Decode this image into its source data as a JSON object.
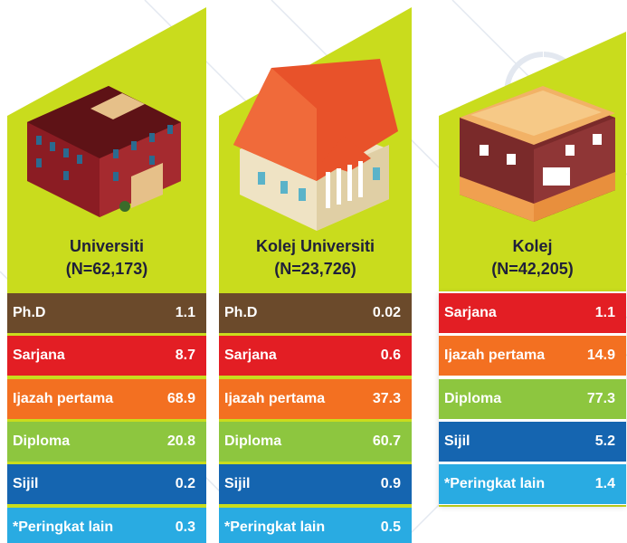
{
  "columns": [
    {
      "title": "Universiti",
      "n": "(N=62,173)",
      "rows": [
        {
          "label": "Ph.D",
          "value": 1.1,
          "color": "#6b4a2b"
        },
        {
          "label": "Sarjana",
          "value": 8.7,
          "color": "#e31e24"
        },
        {
          "label": "Ijazah pertama",
          "value": 68.9,
          "color": "#f37021"
        },
        {
          "label": "Diploma",
          "value": 20.8,
          "color": "#8dc63f"
        },
        {
          "label": "Sijil",
          "value": 0.2,
          "color": "#1565b0"
        },
        {
          "label": "*Peringkat lain",
          "value": 0.3,
          "color": "#29abe2"
        }
      ]
    },
    {
      "title": "Kolej Universiti",
      "n": "(N=23,726)",
      "rows": [
        {
          "label": "Ph.D",
          "value": 0.02,
          "color": "#6b4a2b"
        },
        {
          "label": "Sarjana",
          "value": 0.6,
          "color": "#e31e24"
        },
        {
          "label": "Ijazah pertama",
          "value": 37.3,
          "color": "#f37021"
        },
        {
          "label": "Diploma",
          "value": 60.7,
          "color": "#8dc63f"
        },
        {
          "label": "Sijil",
          "value": 0.9,
          "color": "#1565b0"
        },
        {
          "label": "*Peringkat lain",
          "value": 0.5,
          "color": "#29abe2"
        }
      ]
    },
    {
      "title": "Kolej",
      "n": "(N=42,205)",
      "rows": [
        {
          "label": "Sarjana",
          "value": 1.1,
          "color": "#e31e24"
        },
        {
          "label": "Ijazah pertama",
          "value": 14.9,
          "color": "#f37021"
        },
        {
          "label": "Diploma",
          "value": 77.3,
          "color": "#8dc63f"
        },
        {
          "label": "Sijil",
          "value": 5.2,
          "color": "#1565b0"
        },
        {
          "label": "*Peringkat lain",
          "value": 1.4,
          "color": "#29abe2"
        }
      ]
    }
  ]
}
